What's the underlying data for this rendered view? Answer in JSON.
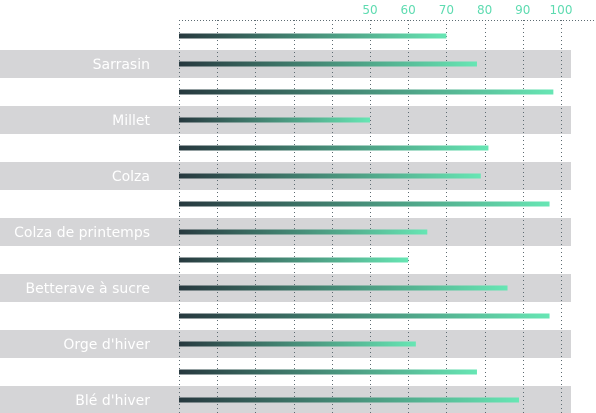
{
  "chart_data": {
    "type": "bar",
    "orientation": "horizontal",
    "title": "",
    "xlabel": "",
    "ylabel": "",
    "x_ticks": [
      50,
      60,
      70,
      80,
      90,
      100
    ],
    "xlim": [
      0,
      100
    ],
    "grid": true,
    "legend": "none",
    "colors": {
      "bar_start": "#27393f",
      "bar_end": "#67e6b4",
      "band": "#d5d5d7",
      "grid": "#5d6b72",
      "tick": "#5ddbb0",
      "label": "#ffffff"
    },
    "rows": [
      {
        "label": "",
        "value": 70
      },
      {
        "label": "Sarrasin",
        "value": 78
      },
      {
        "label": "",
        "value": 98
      },
      {
        "label": "Millet",
        "value": 50
      },
      {
        "label": "",
        "value": 81
      },
      {
        "label": "Colza",
        "value": 79
      },
      {
        "label": "",
        "value": 97
      },
      {
        "label": "Colza de printemps",
        "value": 65
      },
      {
        "label": "",
        "value": 60
      },
      {
        "label": "Betterave à sucre",
        "value": 86
      },
      {
        "label": "",
        "value": 97
      },
      {
        "label": "Orge d'hiver",
        "value": 62
      },
      {
        "label": "",
        "value": 78
      },
      {
        "label": "Blé d'hiver",
        "value": 89
      }
    ]
  }
}
